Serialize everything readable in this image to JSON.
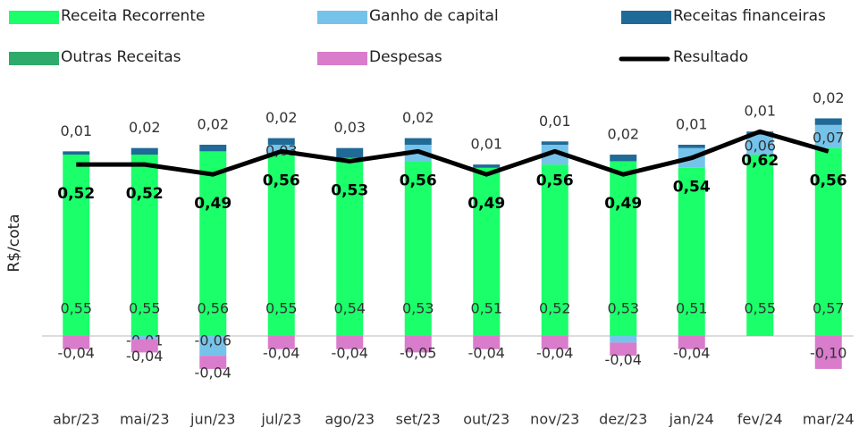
{
  "chart_data": {
    "type": "bar",
    "categories": [
      "abr/23",
      "mai/23",
      "jun/23",
      "jul/23",
      "ago/23",
      "set/23",
      "out/23",
      "nov/23",
      "dez/23",
      "jan/24",
      "fev/24",
      "mar/24"
    ],
    "y_label": "R$/cota",
    "ylim": [
      -0.15,
      0.7
    ],
    "stacked": true,
    "series": [
      {
        "name": "Receita Recorrente",
        "color": "#1aff6a",
        "values": [
          0.55,
          0.55,
          0.56,
          0.55,
          0.54,
          0.53,
          0.51,
          0.52,
          0.53,
          0.51,
          0.55,
          0.57
        ],
        "value_labels": [
          "0,55",
          "0,55",
          "0,56",
          "0,55",
          "0,54",
          "0,53",
          "0,51",
          "0,52",
          "0,53",
          "0,51",
          "0,55",
          "0,57"
        ]
      },
      {
        "name": "Ganho de capital",
        "color": "#75c3ea",
        "values": [
          0,
          -0.01,
          -0.06,
          0.03,
          0,
          0.05,
          0,
          0.06,
          -0.02,
          0.06,
          0.06,
          0.07
        ],
        "value_labels": [
          null,
          "-0,01",
          "-0,06",
          "0,03",
          null,
          null,
          null,
          null,
          null,
          null,
          "0,06",
          "0,07"
        ]
      },
      {
        "name": "Receitas financeiras",
        "color": "#1f6a96",
        "values": [
          0.01,
          0.02,
          0.02,
          0.02,
          0.03,
          0.02,
          0.01,
          0.01,
          0.02,
          0.01,
          0.01,
          0.02
        ],
        "value_labels": [
          "0,01",
          "0,02",
          "0,02",
          "0,02",
          "0,03",
          "0,02",
          "0,01",
          "0,01",
          "0,02",
          "0,01",
          "0,01",
          "0,02"
        ]
      },
      {
        "name": "Outras Receitas",
        "color": "#2eaa6a",
        "values": [
          0,
          0,
          0,
          0,
          0,
          0,
          0,
          0,
          0,
          0,
          0,
          0
        ]
      },
      {
        "name": "Despesas",
        "color": "#d97ccc",
        "values": [
          -0.04,
          -0.04,
          -0.04,
          -0.04,
          -0.04,
          -0.05,
          -0.04,
          -0.04,
          -0.04,
          -0.04,
          0,
          -0.1
        ],
        "value_labels": [
          "-0,04",
          "-0,04",
          "-0,04",
          "-0,04",
          "-0,04",
          "-0,05",
          "-0,04",
          "-0,04",
          "-0,04",
          "-0,04",
          null,
          "-0,10"
        ]
      },
      {
        "name": "Resultado",
        "type": "line",
        "color": "#000000",
        "values": [
          0.52,
          0.52,
          0.49,
          0.56,
          0.53,
          0.56,
          0.49,
          0.56,
          0.49,
          0.54,
          0.62,
          0.56
        ],
        "value_labels": [
          "0,52",
          "0,52",
          "0,49",
          "0,56",
          "0,53",
          "0,56",
          "0,49",
          "0,56",
          "0,49",
          "0,54",
          "0,62",
          "0,56"
        ]
      }
    ]
  }
}
